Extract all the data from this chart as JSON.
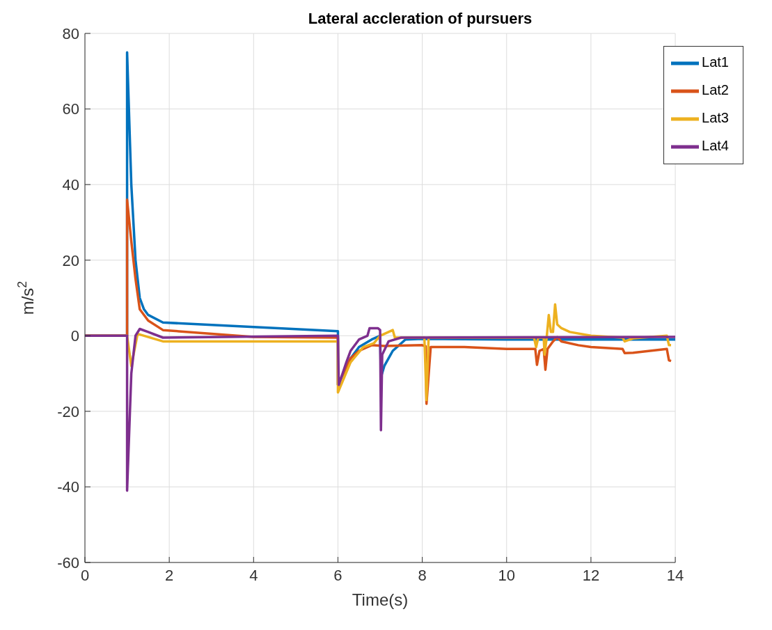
{
  "chart_data": {
    "type": "line",
    "title": "Lateral accleration of pursuers",
    "xlabel": "Time(s)",
    "ylabel": "m/s$^{2}$",
    "xlim": [
      0,
      14
    ],
    "xticks": [
      0,
      2,
      4,
      6,
      8,
      10,
      12,
      14
    ],
    "ylim": [
      -60,
      80
    ],
    "yticks": [
      -60,
      -40,
      -20,
      0,
      20,
      40,
      60,
      80
    ],
    "grid": true,
    "legend": "top right",
    "line_style": "solid",
    "marker": "none",
    "series": [
      {
        "name": "Lat1",
        "color": "#0072bd",
        "x": [
          0,
          1,
          1,
          1.1,
          1.2,
          1.3,
          1.4,
          1.5,
          1.85,
          6,
          6,
          6.3,
          6.5,
          6.8,
          7,
          7.02,
          7.1,
          7.3,
          7.6,
          8,
          10,
          12,
          14
        ],
        "values": [
          0,
          0,
          75,
          40,
          20,
          10,
          7,
          5.5,
          3.5,
          1.2,
          -13,
          -6,
          -3,
          -1,
          0,
          -11,
          -8,
          -4,
          -1,
          -0.8,
          -1,
          -1,
          -1
        ]
      },
      {
        "name": "Lat2",
        "color": "#d95319",
        "x": [
          0,
          1,
          1,
          1.1,
          1.2,
          1.3,
          1.5,
          1.85,
          4,
          6,
          6,
          6.3,
          6.5,
          6.8,
          7.1,
          8,
          8.08,
          8.1,
          8.2,
          9,
          10,
          10.68,
          10.72,
          10.78,
          10.88,
          10.92,
          10.97,
          11.1,
          11.2,
          11.3,
          11.7,
          12,
          12.75,
          12.8,
          13,
          13.8,
          13.85,
          13.9
        ],
        "values": [
          0,
          0,
          36,
          25,
          15,
          7,
          4,
          1.5,
          -0.3,
          -0.5,
          -13,
          -6,
          -4,
          -2.5,
          -2.7,
          -2.5,
          -2.8,
          -18,
          -3,
          -3,
          -3.5,
          -3.5,
          -7.7,
          -4,
          -3.5,
          -9,
          -3.5,
          -1.5,
          -0.4,
          -1.5,
          -2.5,
          -3,
          -3.5,
          -4.6,
          -4.5,
          -3.5,
          -6.5,
          -6.7
        ]
      },
      {
        "name": "Lat3",
        "color": "#edb120",
        "x": [
          0,
          1,
          1.1,
          1.25,
          1.85,
          6,
          6,
          6.3,
          6.6,
          6.85,
          7,
          7.2,
          7.3,
          7.35,
          8.05,
          8.1,
          8.15,
          10.65,
          10.7,
          10.75,
          10.88,
          10.9,
          10.95,
          11,
          11.05,
          11.1,
          11.15,
          11.2,
          11.3,
          11.5,
          12,
          12.75,
          12.8,
          13,
          13.8,
          13.85,
          13.9
        ],
        "values": [
          0,
          0,
          -8,
          0.5,
          -1.5,
          -1.5,
          -15,
          -7,
          -3,
          -2,
          0,
          1,
          1.5,
          -0.5,
          -0.5,
          -17,
          -0.5,
          -0.5,
          -3,
          -0.5,
          -0.5,
          -5,
          -0.5,
          5.5,
          1,
          1,
          8.3,
          3,
          2,
          1,
          0,
          -0.5,
          -1.5,
          -0.7,
          0,
          -2.5,
          -2.5
        ]
      },
      {
        "name": "Lat4",
        "color": "#7e2f8e",
        "x": [
          0,
          1,
          1,
          1.1,
          1.2,
          1.3,
          1.5,
          1.85,
          6,
          6.02,
          6.2,
          6.3,
          6.5,
          6.7,
          6.75,
          6.95,
          7,
          7.02,
          7.05,
          7.2,
          7.5,
          14
        ],
        "values": [
          0,
          0,
          -41,
          -10,
          0,
          1.8,
          1,
          -0.5,
          0,
          -13,
          -7,
          -4,
          -1,
          0,
          2,
          2,
          1.5,
          -25,
          -5,
          -1.5,
          -0.5,
          -0.3
        ]
      }
    ]
  }
}
